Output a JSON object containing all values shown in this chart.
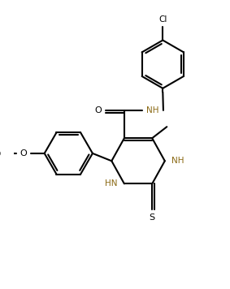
{
  "background_color": "#ffffff",
  "line_color": "#000000",
  "heteroatom_color": "#8B6914",
  "lw": 1.5,
  "figsize": [
    2.83,
    3.56
  ],
  "dpi": 100,
  "xlim": [
    0,
    8.5
  ],
  "ylim": [
    0,
    11.0
  ]
}
